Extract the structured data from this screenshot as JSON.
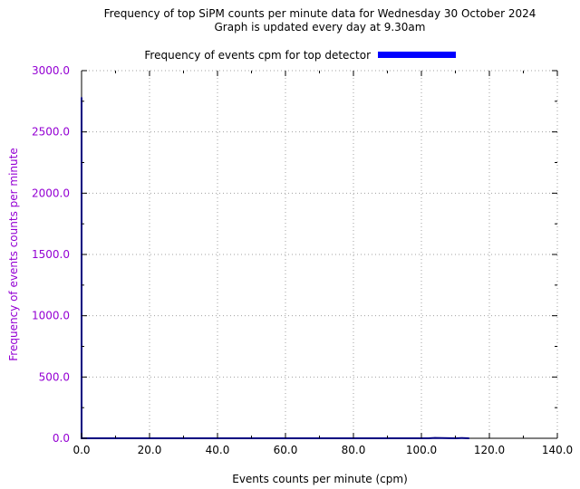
{
  "chart_data": {
    "type": "line",
    "title": "Frequency of top SiPM counts per minute data for Wednesday 30 October 2024",
    "subtitle": "Graph is updated every day at 9.30am",
    "xlabel": "Events counts per minute (cpm)",
    "ylabel": "Frequency of events counts per minute",
    "xlim": [
      0,
      140
    ],
    "ylim": [
      0,
      3000
    ],
    "x_ticks": [
      "0.0",
      "20.0",
      "40.0",
      "60.0",
      "80.0",
      "100.0",
      "120.0",
      "140.0"
    ],
    "y_ticks": [
      "0.0",
      "500.0",
      "1000.0",
      "1500.0",
      "2000.0",
      "2500.0",
      "3000.0"
    ],
    "grid": true,
    "legend_position": "top-center",
    "series": [
      {
        "name": "Frequency of events cpm for top detector",
        "color": "#0000ff",
        "x": [
          0,
          0,
          0,
          1,
          2,
          100,
          102,
          104,
          110,
          112,
          114
        ],
        "y": [
          0,
          2780,
          0,
          0,
          0,
          0,
          0,
          3,
          0,
          2,
          0
        ]
      }
    ]
  },
  "colors": {
    "axis_text": "#9400d3",
    "ylabel": "#9400d3",
    "grid": "#a0a0a0",
    "line": "#000080"
  }
}
